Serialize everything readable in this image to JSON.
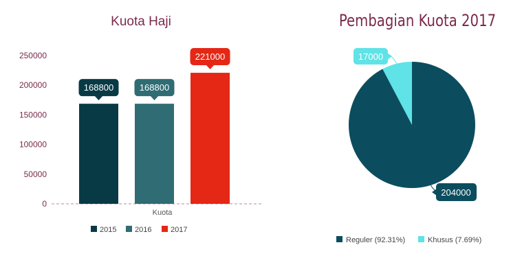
{
  "chart_data": [
    {
      "type": "bar",
      "title": "Kuota Haji",
      "xlabel": "Kuota",
      "ylabel": "",
      "categories": [
        "Kuota"
      ],
      "series": [
        {
          "name": "2015",
          "values": [
            168800
          ],
          "color": "#083a45"
        },
        {
          "name": "2016",
          "values": [
            168800
          ],
          "color": "#2f6c73"
        },
        {
          "name": "2017",
          "values": [
            221000
          ],
          "color": "#e52715"
        }
      ],
      "data_labels": [
        "168800",
        "168800",
        "221000"
      ],
      "yticks": [
        "0",
        "50000",
        "100000",
        "150000",
        "200000",
        "250000"
      ],
      "ylim": [
        0,
        250000
      ],
      "legend": "bottom",
      "grid": false
    },
    {
      "type": "pie",
      "title": "Pembagian Kuota 2017",
      "slices": [
        {
          "label": "Reguler",
          "legend_text": "Reguler (92.31%)",
          "value": 204000,
          "value_label": "204000",
          "percent": 92.31,
          "color": "#0b4d5e"
        },
        {
          "label": "Khusus",
          "legend_text": "Khusus (7.69%)",
          "value": 17000,
          "value_label": "17000",
          "percent": 7.69,
          "color": "#5fe3e6"
        }
      ],
      "legend": "bottom"
    }
  ],
  "colors": {
    "title": "#7a2a4a",
    "axis_text": "#7a2a4a",
    "baseline": "#b48c9c"
  }
}
